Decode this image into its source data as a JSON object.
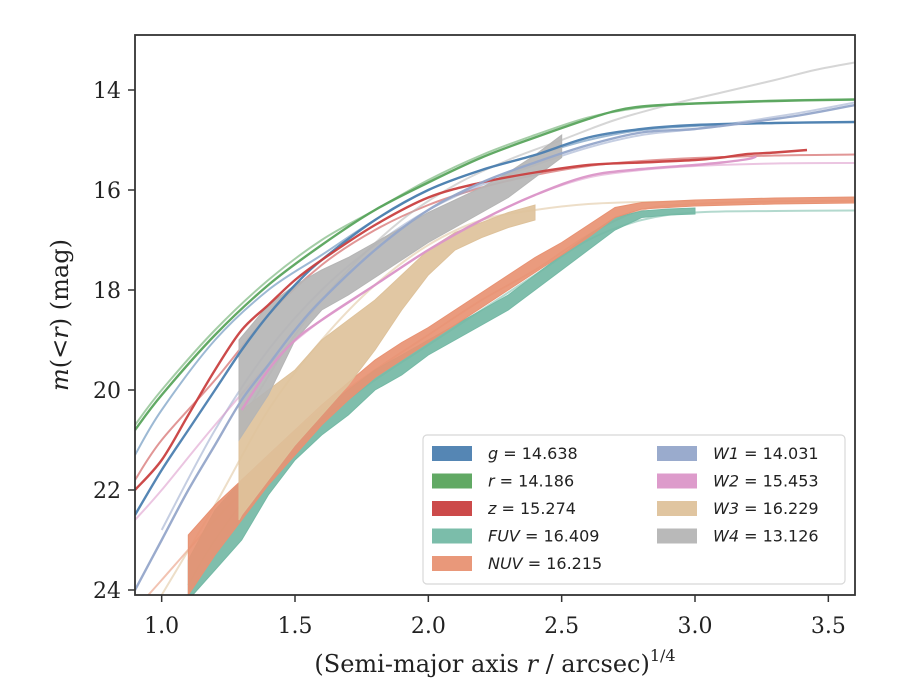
{
  "chart_data": {
    "type": "line",
    "title": "",
    "xlabel": "(Semi-major axis r / arcsec)^1/4",
    "xlabel_parts": {
      "prefix": "(Semi-major axis ",
      "var": "r",
      "middle": " / arcsec)",
      "sup": "1/4"
    },
    "ylabel": "m(<r) (mag)",
    "ylabel_parts": {
      "m": "m",
      "open": "(",
      "lt": "<",
      "r": "r",
      "close": ")",
      "unit": " (mag)"
    },
    "xlim": [
      0.9,
      3.6
    ],
    "ylim": [
      24.1,
      12.9
    ],
    "y_inverted": true,
    "xticks": [
      "1.0",
      "1.5",
      "2.0",
      "2.5",
      "3.0",
      "3.5"
    ],
    "yticks": [
      "14",
      "16",
      "18",
      "20",
      "22",
      "24"
    ],
    "legend_position": "lower-right",
    "grid": false,
    "series": [
      {
        "name": "g",
        "label": "g = 14.638",
        "color": "#4C7FB0",
        "model": [
          [
            0.9,
            21.3
          ],
          [
            1.0,
            20.4
          ],
          [
            1.2,
            19.0
          ],
          [
            1.4,
            18.0
          ],
          [
            1.6,
            17.3
          ],
          [
            1.8,
            16.6
          ],
          [
            2.0,
            16.0
          ],
          [
            2.2,
            15.6
          ],
          [
            2.4,
            15.3
          ],
          [
            2.6,
            15.0
          ],
          [
            2.8,
            14.8
          ],
          [
            3.0,
            14.72
          ],
          [
            3.3,
            14.66
          ],
          [
            3.6,
            14.64
          ]
        ],
        "measured": [
          [
            0.9,
            22.5
          ],
          [
            1.0,
            21.6
          ],
          [
            1.1,
            20.8
          ],
          [
            1.2,
            20.0
          ],
          [
            1.3,
            19.2
          ],
          [
            1.4,
            18.5
          ],
          [
            1.5,
            17.9
          ],
          [
            1.6,
            17.4
          ],
          [
            1.8,
            16.6
          ],
          [
            2.0,
            16.0
          ],
          [
            2.2,
            15.6
          ],
          [
            2.4,
            15.3
          ],
          [
            2.6,
            14.95
          ],
          [
            2.8,
            14.78
          ],
          [
            3.0,
            14.7
          ],
          [
            3.3,
            14.66
          ],
          [
            3.6,
            14.64
          ]
        ]
      },
      {
        "name": "r",
        "label": "r = 14.186",
        "color": "#59A45C",
        "model": [
          [
            0.9,
            20.7
          ],
          [
            1.0,
            20.0
          ],
          [
            1.2,
            18.8
          ],
          [
            1.4,
            17.8
          ],
          [
            1.6,
            17.0
          ],
          [
            1.8,
            16.4
          ],
          [
            2.0,
            15.8
          ],
          [
            2.2,
            15.3
          ],
          [
            2.4,
            14.9
          ],
          [
            2.6,
            14.55
          ],
          [
            2.8,
            14.35
          ],
          [
            3.0,
            14.27
          ],
          [
            3.3,
            14.21
          ],
          [
            3.6,
            14.19
          ]
        ],
        "measured": [
          [
            0.9,
            20.8
          ],
          [
            1.0,
            20.1
          ],
          [
            1.2,
            18.9
          ],
          [
            1.4,
            17.9
          ],
          [
            1.6,
            17.1
          ],
          [
            1.8,
            16.4
          ],
          [
            2.0,
            15.85
          ],
          [
            2.2,
            15.35
          ],
          [
            2.4,
            14.95
          ],
          [
            2.6,
            14.58
          ],
          [
            2.7,
            14.42
          ],
          [
            2.8,
            14.33
          ],
          [
            3.0,
            14.27
          ],
          [
            3.3,
            14.22
          ],
          [
            3.6,
            14.19
          ]
        ]
      },
      {
        "name": "z",
        "label": "z = 15.274",
        "color": "#C94040",
        "model": [
          [
            0.9,
            21.8
          ],
          [
            1.0,
            21.0
          ],
          [
            1.2,
            19.8
          ],
          [
            1.4,
            18.5
          ],
          [
            1.6,
            17.5
          ],
          [
            1.8,
            16.8
          ],
          [
            2.0,
            16.3
          ],
          [
            2.2,
            15.95
          ],
          [
            2.4,
            15.7
          ],
          [
            2.6,
            15.52
          ],
          [
            2.8,
            15.42
          ],
          [
            3.0,
            15.36
          ],
          [
            3.3,
            15.31
          ],
          [
            3.6,
            15.29
          ]
        ],
        "measured": [
          [
            0.9,
            22.0
          ],
          [
            1.0,
            21.4
          ],
          [
            1.1,
            20.5
          ],
          [
            1.2,
            19.6
          ],
          [
            1.3,
            18.8
          ],
          [
            1.4,
            18.3
          ],
          [
            1.5,
            17.8
          ],
          [
            1.6,
            17.4
          ],
          [
            1.8,
            16.7
          ],
          [
            2.0,
            16.15
          ],
          [
            2.2,
            15.85
          ],
          [
            2.4,
            15.65
          ],
          [
            2.6,
            15.5
          ],
          [
            2.8,
            15.45
          ],
          [
            3.0,
            15.4
          ],
          [
            3.1,
            15.35
          ],
          [
            3.2,
            15.28
          ],
          [
            3.3,
            15.25
          ],
          [
            3.42,
            15.2
          ]
        ]
      },
      {
        "name": "FUV",
        "label": "FUV = 16.409",
        "color": "#74B9A5",
        "model": [
          [
            1.1,
            23.9
          ],
          [
            1.2,
            23.0
          ],
          [
            1.4,
            21.6
          ],
          [
            1.6,
            20.6
          ],
          [
            1.8,
            19.8
          ],
          [
            2.0,
            19.1
          ],
          [
            2.2,
            18.4
          ],
          [
            2.4,
            17.7
          ],
          [
            2.6,
            17.0
          ],
          [
            2.8,
            16.6
          ],
          [
            3.0,
            16.45
          ],
          [
            3.3,
            16.42
          ],
          [
            3.6,
            16.41
          ]
        ],
        "band": [
          [
            1.1,
            23.4,
            24.2
          ],
          [
            1.2,
            22.4,
            23.6
          ],
          [
            1.3,
            21.8,
            23.0
          ],
          [
            1.4,
            21.3,
            22.1
          ],
          [
            1.5,
            20.8,
            21.4
          ],
          [
            1.6,
            20.4,
            20.9
          ],
          [
            1.7,
            20.0,
            20.5
          ],
          [
            1.8,
            19.6,
            20.0
          ],
          [
            1.9,
            19.3,
            19.7
          ],
          [
            2.0,
            19.0,
            19.3
          ],
          [
            2.1,
            18.7,
            19.0
          ],
          [
            2.2,
            18.4,
            18.7
          ],
          [
            2.3,
            18.1,
            18.4
          ],
          [
            2.4,
            17.7,
            18.0
          ],
          [
            2.5,
            17.3,
            17.6
          ],
          [
            2.6,
            16.9,
            17.2
          ],
          [
            2.7,
            16.55,
            16.8
          ],
          [
            2.8,
            16.42,
            16.55
          ],
          [
            2.9,
            16.38,
            16.5
          ],
          [
            3.0,
            16.36,
            16.48
          ]
        ]
      },
      {
        "name": "NUV",
        "label": "NUV = 16.215",
        "color": "#E89273",
        "model": [
          [
            0.95,
            24.1
          ],
          [
            1.0,
            23.8
          ],
          [
            1.2,
            22.6
          ],
          [
            1.4,
            21.5
          ],
          [
            1.6,
            20.4
          ],
          [
            1.8,
            19.6
          ],
          [
            2.0,
            18.9
          ],
          [
            2.2,
            18.2
          ],
          [
            2.4,
            17.6
          ],
          [
            2.6,
            16.9
          ],
          [
            2.8,
            16.4
          ],
          [
            3.0,
            16.28
          ],
          [
            3.3,
            16.23
          ],
          [
            3.6,
            16.22
          ]
        ],
        "band": [
          [
            1.1,
            22.9,
            24.1
          ],
          [
            1.2,
            22.3,
            23.3
          ],
          [
            1.3,
            21.8,
            22.6
          ],
          [
            1.4,
            21.3,
            21.9
          ],
          [
            1.5,
            20.8,
            21.3
          ],
          [
            1.6,
            20.3,
            20.7
          ],
          [
            1.7,
            19.85,
            20.2
          ],
          [
            1.8,
            19.4,
            19.75
          ],
          [
            1.9,
            19.05,
            19.4
          ],
          [
            2.0,
            18.75,
            19.05
          ],
          [
            2.1,
            18.4,
            18.7
          ],
          [
            2.2,
            18.05,
            18.35
          ],
          [
            2.3,
            17.7,
            18.0
          ],
          [
            2.4,
            17.35,
            17.65
          ],
          [
            2.5,
            17.05,
            17.3
          ],
          [
            2.6,
            16.7,
            16.95
          ],
          [
            2.7,
            16.35,
            16.55
          ],
          [
            2.8,
            16.25,
            16.38
          ],
          [
            3.0,
            16.2,
            16.32
          ],
          [
            3.3,
            16.16,
            16.28
          ],
          [
            3.6,
            16.14,
            16.26
          ]
        ]
      },
      {
        "name": "W1",
        "label": "W1 = 14.031",
        "color": "#95A6CA",
        "model": [
          [
            1.0,
            22.8
          ],
          [
            1.2,
            20.8
          ],
          [
            1.4,
            19.2
          ],
          [
            1.6,
            18.0
          ],
          [
            1.8,
            17.1
          ],
          [
            2.0,
            16.4
          ],
          [
            2.2,
            15.9
          ],
          [
            2.4,
            15.5
          ],
          [
            2.6,
            15.15
          ],
          [
            2.8,
            14.9
          ],
          [
            3.0,
            14.78
          ],
          [
            3.2,
            14.62
          ],
          [
            3.4,
            14.45
          ],
          [
            3.6,
            14.25
          ]
        ],
        "measured": [
          [
            0.9,
            24.0
          ],
          [
            1.0,
            23.0
          ],
          [
            1.1,
            22.0
          ],
          [
            1.2,
            21.1
          ],
          [
            1.3,
            20.2
          ],
          [
            1.4,
            19.5
          ],
          [
            1.5,
            18.8
          ],
          [
            1.6,
            18.2
          ],
          [
            1.8,
            17.2
          ],
          [
            2.0,
            16.4
          ],
          [
            2.2,
            15.85
          ],
          [
            2.4,
            15.45
          ],
          [
            2.6,
            15.1
          ],
          [
            2.8,
            14.85
          ],
          [
            3.0,
            14.78
          ],
          [
            3.2,
            14.65
          ],
          [
            3.4,
            14.5
          ],
          [
            3.6,
            14.3
          ]
        ]
      },
      {
        "name": "W2",
        "label": "W2 = 15.453",
        "color": "#DB96C8",
        "model": [
          [
            0.9,
            22.6
          ],
          [
            1.0,
            22.0
          ],
          [
            1.2,
            20.7
          ],
          [
            1.4,
            19.5
          ],
          [
            1.6,
            18.6
          ],
          [
            1.8,
            17.9
          ],
          [
            2.0,
            17.2
          ],
          [
            2.2,
            16.6
          ],
          [
            2.4,
            16.1
          ],
          [
            2.6,
            15.75
          ],
          [
            2.8,
            15.6
          ],
          [
            3.0,
            15.52
          ],
          [
            3.3,
            15.47
          ],
          [
            3.6,
            15.46
          ]
        ],
        "measured": [
          [
            1.3,
            20.4
          ],
          [
            1.4,
            19.6
          ],
          [
            1.5,
            19.0
          ],
          [
            1.6,
            18.6
          ],
          [
            1.8,
            17.9
          ],
          [
            2.0,
            17.2
          ],
          [
            2.2,
            16.6
          ],
          [
            2.4,
            16.1
          ],
          [
            2.6,
            15.72
          ],
          [
            2.8,
            15.58
          ],
          [
            3.0,
            15.5
          ],
          [
            3.1,
            15.45
          ],
          [
            3.2,
            15.38
          ],
          [
            3.23,
            15.33
          ]
        ]
      },
      {
        "name": "W3",
        "label": "W3 = 16.229",
        "color": "#DEC29B",
        "model": [
          [
            1.0,
            24.1
          ],
          [
            1.2,
            22.3
          ],
          [
            1.4,
            20.4
          ],
          [
            1.6,
            19.0
          ],
          [
            1.8,
            17.9
          ],
          [
            2.0,
            17.1
          ],
          [
            2.2,
            16.6
          ],
          [
            2.4,
            16.4
          ],
          [
            2.6,
            16.28
          ],
          [
            2.8,
            16.24
          ],
          [
            3.0,
            16.23
          ]
        ],
        "band": [
          [
            1.29,
            20.4,
            22.6
          ],
          [
            1.3,
            20.4,
            22.5
          ],
          [
            1.4,
            20.0,
            21.8
          ],
          [
            1.5,
            19.6,
            21.1
          ],
          [
            1.6,
            19.0,
            20.5
          ],
          [
            1.7,
            18.6,
            19.9
          ],
          [
            1.8,
            18.2,
            19.2
          ],
          [
            1.9,
            17.7,
            18.4
          ],
          [
            2.0,
            17.2,
            17.7
          ],
          [
            2.1,
            16.85,
            17.2
          ],
          [
            2.2,
            16.65,
            16.95
          ],
          [
            2.3,
            16.45,
            16.75
          ],
          [
            2.4,
            16.3,
            16.6
          ]
        ]
      },
      {
        "name": "W4",
        "label": "W4 = 13.126",
        "color": "#B5B5B5",
        "model": [
          [
            1.3,
            20.6
          ],
          [
            1.5,
            18.9
          ],
          [
            1.7,
            17.6
          ],
          [
            1.9,
            16.6
          ],
          [
            2.1,
            15.9
          ],
          [
            2.3,
            15.4
          ],
          [
            2.5,
            15.0
          ],
          [
            2.7,
            14.6
          ],
          [
            2.9,
            14.3
          ],
          [
            3.1,
            14.05
          ],
          [
            3.3,
            13.8
          ],
          [
            3.45,
            13.6
          ],
          [
            3.6,
            13.45
          ]
        ],
        "band": [
          [
            1.29,
            19.0,
            21.0
          ],
          [
            1.4,
            18.3,
            20.1
          ],
          [
            1.5,
            17.9,
            19.0
          ],
          [
            1.6,
            17.6,
            18.4
          ],
          [
            1.7,
            17.35,
            18.1
          ],
          [
            1.8,
            17.05,
            17.75
          ],
          [
            1.9,
            16.75,
            17.4
          ],
          [
            2.0,
            16.45,
            17.05
          ],
          [
            2.1,
            16.2,
            16.75
          ],
          [
            2.2,
            15.95,
            16.45
          ],
          [
            2.3,
            15.65,
            16.15
          ],
          [
            2.4,
            15.3,
            15.75
          ],
          [
            2.5,
            14.9,
            15.35
          ]
        ]
      }
    ]
  }
}
